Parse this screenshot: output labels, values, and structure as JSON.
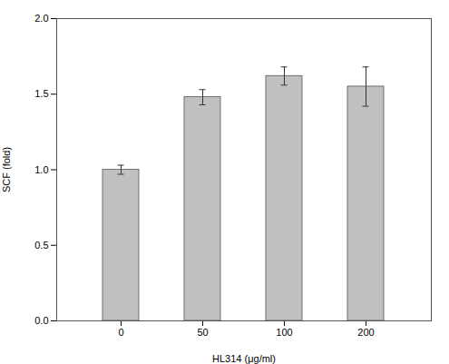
{
  "chart_data": {
    "type": "bar",
    "categories": [
      "0",
      "50",
      "100",
      "200"
    ],
    "values": [
      1.0,
      1.48,
      1.62,
      1.55
    ],
    "errors": [
      0.03,
      0.05,
      0.06,
      0.13
    ],
    "color": "#C0C0C0",
    "xlabel": "HL314 (μg/ml)",
    "ylabel": "SCF (fold)",
    "ylim": [
      0.0,
      2.0
    ],
    "yticks": [
      {
        "value": 0.0,
        "label": "0.0"
      },
      {
        "value": 0.5,
        "label": "0.5"
      },
      {
        "value": 1.0,
        "label": "1.0"
      },
      {
        "value": 1.5,
        "label": "1.5"
      },
      {
        "value": 2.0,
        "label": "2.0"
      }
    ],
    "grid": false
  }
}
